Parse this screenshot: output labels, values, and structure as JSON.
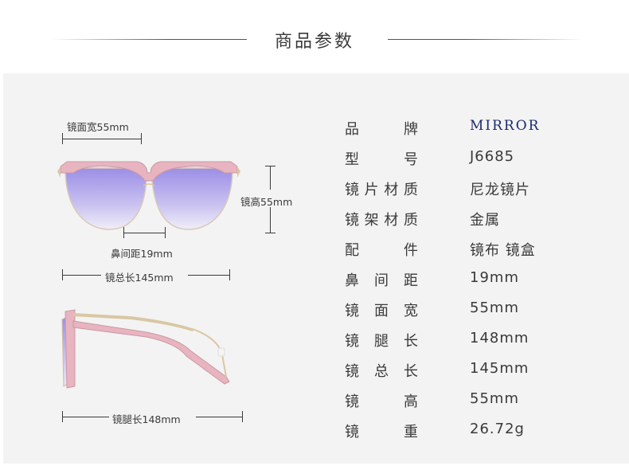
{
  "header": {
    "title": "商品参数"
  },
  "diagram": {
    "lens_width_label": "镜面宽55mm",
    "lens_height_label": "镜高55mm",
    "nose_distance_label": "鼻间距19mm",
    "total_length_label": "镜总长145mm",
    "temple_length_label": "镜腿长148mm"
  },
  "specs": [
    {
      "label": [
        "品",
        "牌"
      ],
      "value": "MIRROR"
    },
    {
      "label": [
        "型",
        "号"
      ],
      "value": "J6685"
    },
    {
      "label": [
        "镜",
        "片",
        "材",
        "质"
      ],
      "value": "尼龙镜片"
    },
    {
      "label": [
        "镜",
        "架",
        "材",
        "质"
      ],
      "value": "金属"
    },
    {
      "label": [
        "配",
        "件"
      ],
      "value": "镜布  镜盒"
    },
    {
      "label": [
        "鼻",
        "间",
        "距"
      ],
      "value": "19mm"
    },
    {
      "label": [
        "镜",
        "面",
        "宽"
      ],
      "value": "55mm"
    },
    {
      "label": [
        "镜",
        "腿",
        "长"
      ],
      "value": "148mm"
    },
    {
      "label": [
        "镜",
        "总",
        "长"
      ],
      "value": "145mm"
    },
    {
      "label": [
        "镜",
        "高"
      ],
      "value": "55mm"
    },
    {
      "label": [
        "镜",
        "重"
      ],
      "value": "26.72g"
    }
  ],
  "colors": {
    "frame_pink": "#e8b4bf",
    "frame_gold": "#d9c7a3",
    "lens_purple": "#a89be8",
    "brand_blue": "#1a2a6c"
  }
}
